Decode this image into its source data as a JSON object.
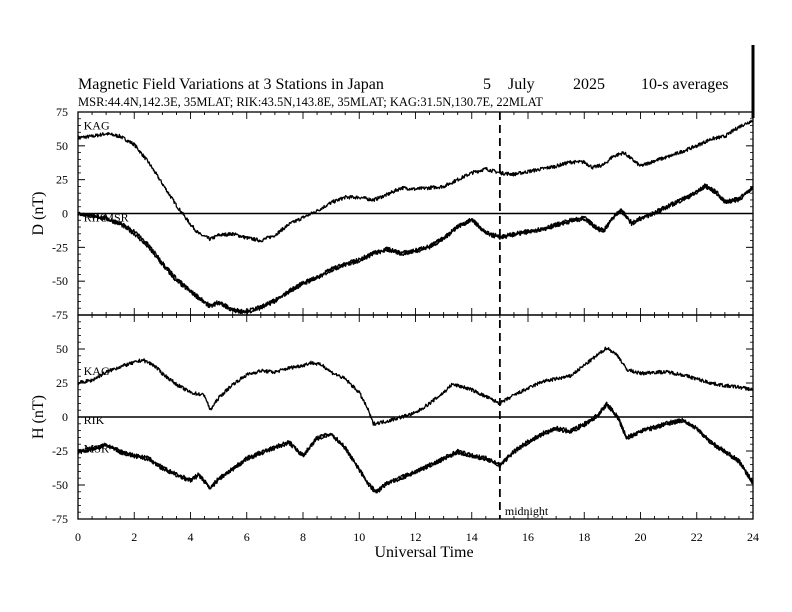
{
  "header": {
    "title": "Magnetic Field Variations at 3 Stations in Japan",
    "day": "5",
    "month": "July",
    "year": "2025",
    "averaging": "10-s averages",
    "stations": "MSR:44.4N,142.3E, 35MLAT;  RIK:43.5N,143.8E, 35MLAT;  KAG:31.5N,130.7E, 22MLAT"
  },
  "chart_data": {
    "type": "line",
    "xlabel": "Universal Time",
    "xlim": [
      0,
      24
    ],
    "xticks": [
      0,
      2,
      4,
      6,
      8,
      10,
      12,
      14,
      16,
      18,
      20,
      22,
      24
    ],
    "annotation": {
      "x": 15,
      "label": "midnight"
    },
    "panels": [
      {
        "ylabel": "D (nT)",
        "ylim": [
          -75,
          75
        ],
        "yticks": [
          75,
          50,
          25,
          0,
          -25,
          -50,
          -75
        ],
        "zero_line": true,
        "series": [
          {
            "name": "KAG",
            "label": "KAG",
            "x": [
              0,
              0.5,
              1,
              1.5,
              2,
              2.5,
              3,
              3.5,
              4,
              4.3,
              4.7,
              5,
              5.5,
              6,
              6.5,
              7,
              7.5,
              8,
              8.5,
              9,
              9.5,
              10,
              10.5,
              11,
              11.5,
              12,
              12.5,
              13,
              13.5,
              14,
              14.5,
              15,
              15.5,
              16,
              16.5,
              17,
              17.5,
              18,
              18.3,
              18.7,
              19,
              19.4,
              19.7,
              20,
              20.5,
              21,
              21.5,
              22,
              22.5,
              23,
              23.5,
              24
            ],
            "y": [
              56,
              57,
              59,
              57,
              51,
              38,
              22,
              6,
              -8,
              -15,
              -19,
              -16,
              -15,
              -18,
              -20,
              -16,
              -8,
              -3,
              2,
              8,
              12,
              12,
              10,
              14,
              19,
              18,
              19,
              20,
              25,
              30,
              33,
              30,
              29,
              31,
              33,
              35,
              38,
              38,
              34,
              36,
              42,
              45,
              40,
              35,
              39,
              42,
              46,
              50,
              55,
              57,
              64,
              69
            ]
          },
          {
            "name": "RIK",
            "label": "RIK",
            "x": [
              0,
              0.5,
              1,
              1.5,
              2,
              2.5,
              3,
              3.5,
              4,
              4.5,
              4.7,
              5,
              5.5,
              6,
              6.5,
              7,
              7.5,
              8,
              8.5,
              9,
              9.5,
              10,
              10.5,
              11,
              11.5,
              12,
              12.5,
              13,
              13.5,
              14,
              14.5,
              15,
              15.5,
              16,
              16.5,
              17,
              17.5,
              18,
              18.5,
              18.7,
              19,
              19.3,
              19.7,
              20,
              20.5,
              21,
              21.5,
              22,
              22.3,
              22.7,
              23,
              23.5,
              24
            ],
            "y": [
              0,
              -2,
              -4,
              -8,
              -15,
              -25,
              -38,
              -50,
              -58,
              -66,
              -69,
              -66,
              -72,
              -73,
              -70,
              -65,
              -58,
              -52,
              -48,
              -42,
              -38,
              -35,
              -30,
              -27,
              -30,
              -28,
              -25,
              -19,
              -10,
              -5,
              -15,
              -18,
              -16,
              -14,
              -12,
              -9,
              -6,
              -4,
              -12,
              -13,
              -4,
              2,
              -8,
              -4,
              0,
              5,
              10,
              15,
              20,
              15,
              8,
              10,
              19
            ]
          },
          {
            "name": "MSR",
            "label": "MSR",
            "x": [
              0,
              0.5,
              1,
              1.5,
              2,
              2.5,
              3,
              3.5,
              4,
              4.5,
              4.7,
              5,
              5.5,
              6,
              6.5,
              7,
              7.5,
              8,
              8.5,
              9,
              9.5,
              10,
              10.5,
              11,
              11.5,
              12,
              12.5,
              13,
              13.5,
              14,
              14.5,
              15,
              15.5,
              16,
              16.5,
              17,
              17.5,
              18,
              18.5,
              18.7,
              19,
              19.3,
              19.7,
              20,
              20.5,
              21,
              21.5,
              22,
              22.3,
              22.7,
              23,
              23.5,
              24
            ],
            "y": [
              0,
              -2,
              -3,
              -7,
              -13,
              -23,
              -36,
              -48,
              -57,
              -65,
              -68,
              -65,
              -71,
              -72,
              -69,
              -64,
              -57,
              -51,
              -47,
              -41,
              -37,
              -34,
              -29,
              -26,
              -29,
              -27,
              -24,
              -18,
              -9,
              -4,
              -14,
              -17,
              -15,
              -13,
              -11,
              -8,
              -5,
              -3,
              -11,
              -12,
              -3,
              3,
              -7,
              -3,
              1,
              6,
              11,
              16,
              21,
              16,
              9,
              11,
              20
            ]
          }
        ]
      },
      {
        "ylabel": "H (nT)",
        "ylim": [
          -75,
          75
        ],
        "yticks": [
          50,
          25,
          0,
          -25,
          -50,
          -75
        ],
        "zero_line": true,
        "series": [
          {
            "name": "KAG",
            "label": "KAG",
            "x": [
              0,
              0.5,
              1,
              1.5,
              2,
              2.3,
              2.7,
              3,
              3.5,
              4,
              4.5,
              4.7,
              5,
              5.5,
              6,
              6.5,
              7,
              7.5,
              8,
              8.3,
              8.7,
              9,
              9.5,
              10,
              10.3,
              10.5,
              11,
              11.5,
              12,
              12.5,
              13,
              13.3,
              13.7,
              14,
              14.5,
              15,
              15.5,
              16,
              16.5,
              17,
              17.5,
              18,
              18.5,
              18.8,
              19.2,
              19.5,
              20,
              20.5,
              21,
              21.5,
              22,
              22.5,
              23,
              23.5,
              24
            ],
            "y": [
              25,
              27,
              33,
              37,
              40,
              42,
              38,
              32,
              24,
              18,
              16,
              5,
              14,
              24,
              31,
              34,
              33,
              36,
              38,
              40,
              38,
              33,
              28,
              18,
              6,
              -5,
              -3,
              0,
              3,
              10,
              18,
              24,
              22,
              20,
              15,
              10,
              16,
              21,
              26,
              28,
              30,
              38,
              46,
              51,
              45,
              35,
              32,
              33,
              33,
              31,
              28,
              25,
              23,
              22,
              20
            ]
          },
          {
            "name": "RIK",
            "label": "RIK",
            "x": [
              0,
              0.5,
              1,
              1.5,
              2,
              2.5,
              3,
              3.5,
              4,
              4.3,
              4.7,
              5,
              5.5,
              6,
              6.5,
              7,
              7.5,
              8,
              8.5,
              9,
              9.5,
              10,
              10.3,
              10.6,
              11,
              11.5,
              12,
              12.5,
              13,
              13.5,
              14,
              14.5,
              15,
              15.5,
              16,
              16.5,
              17,
              17.5,
              18,
              18.5,
              18.8,
              19.2,
              19.5,
              20,
              20.5,
              21,
              21.5,
              22,
              22.5,
              23,
              23.5,
              24
            ],
            "y": [
              -25,
              -23,
              -20,
              -25,
              -28,
              -30,
              -37,
              -42,
              -46,
              -42,
              -52,
              -45,
              -38,
              -30,
              -26,
              -22,
              -18,
              -28,
              -15,
              -12,
              -22,
              -38,
              -48,
              -55,
              -48,
              -44,
              -40,
              -35,
              -30,
              -25,
              -28,
              -30,
              -35,
              -25,
              -18,
              -12,
              -8,
              -10,
              -5,
              2,
              10,
              0,
              -15,
              -10,
              -7,
              -4,
              -2,
              -8,
              -18,
              -25,
              -32,
              -48
            ]
          },
          {
            "name": "MSR",
            "label": "MSR",
            "x": [
              0,
              0.5,
              1,
              1.5,
              2,
              2.5,
              3,
              3.5,
              4,
              4.3,
              4.7,
              5,
              5.5,
              6,
              6.5,
              7,
              7.5,
              8,
              8.5,
              9,
              9.5,
              10,
              10.3,
              10.6,
              11,
              11.5,
              12,
              12.5,
              13,
              13.5,
              14,
              14.5,
              15,
              15.5,
              16,
              16.5,
              17,
              17.5,
              18,
              18.5,
              18.8,
              19.2,
              19.5,
              20,
              20.5,
              21,
              21.5,
              22,
              22.5,
              23,
              23.5,
              24
            ],
            "y": [
              -26,
              -24,
              -21,
              -26,
              -29,
              -31,
              -38,
              -43,
              -47,
              -43,
              -53,
              -46,
              -39,
              -31,
              -27,
              -23,
              -19,
              -29,
              -16,
              -13,
              -23,
              -39,
              -49,
              -56,
              -49,
              -45,
              -41,
              -36,
              -31,
              -26,
              -29,
              -31,
              -36,
              -26,
              -19,
              -13,
              -9,
              -11,
              -6,
              1,
              9,
              -1,
              -16,
              -11,
              -8,
              -5,
              -3,
              -9,
              -19,
              -26,
              -33,
              -49
            ]
          }
        ]
      }
    ]
  }
}
